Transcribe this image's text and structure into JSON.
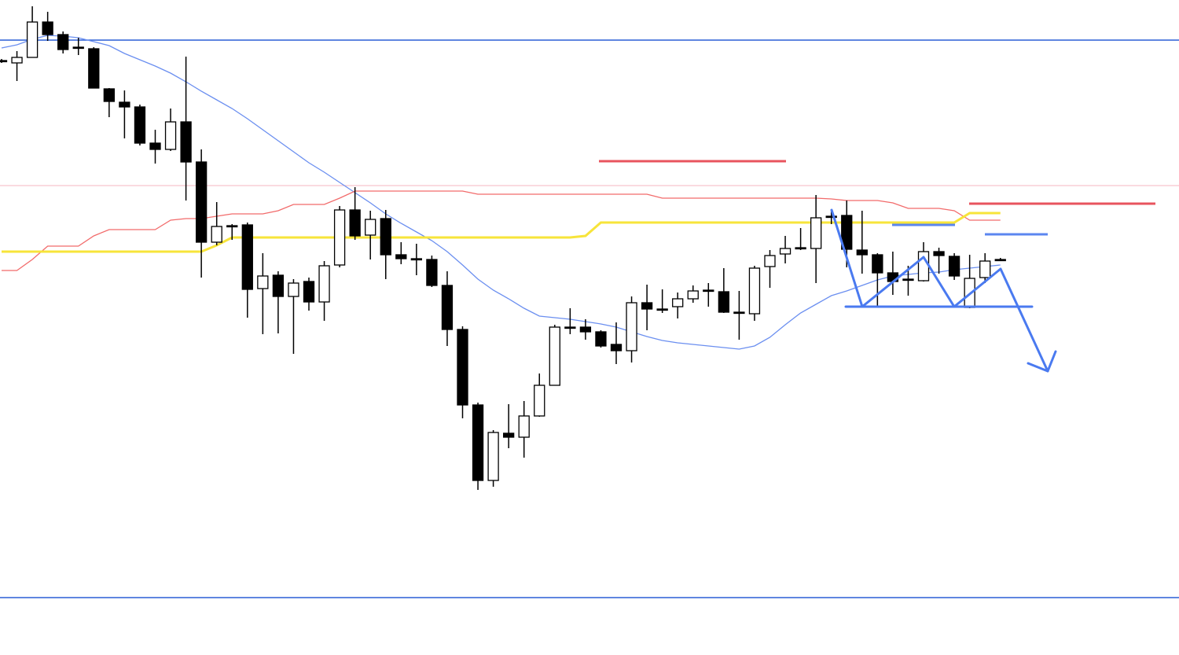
{
  "chart_data": {
    "type": "candlestick",
    "ylim": [
      -833,
      0
    ],
    "up_color": "#ffffff",
    "down_color": "#000000",
    "open": [
      -77,
      -80,
      -73,
      -28,
      -44,
      -60,
      -62,
      -113,
      -130,
      -136,
      -182,
      -190,
      -155,
      -206,
      -308,
      -287,
      -286,
      -367,
      -350,
      -377,
      -358,
      -384,
      -337,
      -267,
      -299,
      -278,
      -324,
      -329,
      -330,
      -363,
      -419,
      -515,
      -611,
      -551,
      -556,
      -529,
      -490,
      -416,
      -416,
      -422,
      -438,
      -446,
      -385,
      -393,
      -390,
      -380,
      -369,
      -371,
      -397,
      -399,
      -339,
      -323,
      -315,
      -316,
      -275,
      -274,
      -318,
      -324,
      -347,
      -355,
      -357,
      -320,
      -326,
      -391,
      -353,
      -330
    ],
    "high": [
      -75,
      -65,
      -8,
      -15,
      -40,
      -48,
      -60,
      -112,
      -115,
      -133,
      -165,
      -138,
      -72,
      -190,
      -257,
      -285,
      -283,
      -322,
      -345,
      -355,
      -353,
      -332,
      -262,
      -238,
      -268,
      -267,
      -308,
      -310,
      -325,
      -345,
      -415,
      -512,
      -547,
      -514,
      -510,
      -475,
      -413,
      -392,
      -406,
      -420,
      -410,
      -377,
      -362,
      -368,
      -372,
      -363,
      -360,
      -341,
      -370,
      -338,
      -318,
      -300,
      -290,
      -248,
      -266,
      -255,
      -268,
      -322,
      -320,
      -338,
      -308,
      -315,
      -322,
      -324,
      -322,
      -328
    ],
    "low": [
      -80,
      -103,
      -73,
      -52,
      -68,
      -70,
      -112,
      -149,
      -176,
      -185,
      -208,
      -192,
      -255,
      -353,
      -312,
      -305,
      -404,
      -425,
      -424,
      -450,
      -395,
      -408,
      -340,
      -305,
      -330,
      -355,
      -336,
      -350,
      -365,
      -440,
      -532,
      -623,
      -619,
      -570,
      -582,
      -530,
      -490,
      -425,
      -432,
      -442,
      -463,
      -461,
      -420,
      -398,
      -405,
      -385,
      -390,
      -398,
      -432,
      -408,
      -366,
      -335,
      -318,
      -360,
      -285,
      -340,
      -348,
      -390,
      -375,
      -376,
      -358,
      -348,
      -356,
      -392,
      -360,
      -331
    ],
    "close": [
      -78,
      -73,
      -28,
      -44,
      -63,
      -61,
      -112,
      -129,
      -136,
      -182,
      -190,
      -155,
      -206,
      -308,
      -288,
      -287,
      -368,
      -351,
      -377,
      -360,
      -384,
      -338,
      -267,
      -300,
      -279,
      -324,
      -329,
      -329,
      -363,
      -419,
      -515,
      -611,
      -550,
      -556,
      -529,
      -490,
      -416,
      -416,
      -422,
      -440,
      -446,
      -385,
      -393,
      -393,
      -380,
      -370,
      -369,
      -397,
      -397,
      -341,
      -325,
      -316,
      -315,
      -277,
      -275,
      -317,
      -324,
      -347,
      -358,
      -355,
      -320,
      -325,
      -351,
      -354,
      -332,
      -330
    ],
    "series": [
      {
        "color": "#6b8ff0",
        "values": [
          -61,
          -57,
          -50,
          -45,
          -46,
          -48,
          -53,
          -58,
          -68,
          -76,
          -84,
          -93,
          -104,
          -116,
          -127,
          -138,
          -151,
          -165,
          -179,
          -193,
          -207,
          -219,
          -232,
          -245,
          -258,
          -272,
          -284,
          -295,
          -306,
          -320,
          -337,
          -355,
          -369,
          -380,
          -392,
          -402,
          -404,
          -406,
          -409,
          -412,
          -416,
          -422,
          -428,
          -433,
          -436,
          -438,
          -440,
          -442,
          -444,
          -440,
          -429,
          -413,
          -398,
          -387,
          -376,
          -370,
          -363,
          -356,
          -351,
          -349,
          -347,
          -346,
          -343,
          -341,
          -339,
          -337
        ]
      },
      {
        "color": "#f26b6b",
        "values": [
          -344,
          -344,
          -330,
          -313,
          -313,
          -313,
          -300,
          -292,
          -292,
          -292,
          -292,
          -280,
          -278,
          -278,
          -275,
          -272,
          -272,
          -272,
          -268,
          -260,
          -260,
          -260,
          -252,
          -243,
          -243,
          -243,
          -243,
          -243,
          -243,
          -243,
          -243,
          -247,
          -247,
          -247,
          -247,
          -247,
          -247,
          -247,
          -247,
          -247,
          -247,
          -247,
          -247,
          -252,
          -252,
          -252,
          -252,
          -252,
          -252,
          -252,
          -252,
          -252,
          -252,
          -252,
          -253,
          -255,
          -255,
          -255,
          -258,
          -265,
          -265,
          -265,
          -268,
          -280,
          -280,
          -280
        ]
      },
      {
        "color": "#f7e43a",
        "values": [
          -320,
          -320,
          -320,
          -320,
          -320,
          -320,
          -320,
          -320,
          -320,
          -320,
          -320,
          -320,
          -320,
          -320,
          -312,
          -302,
          -302,
          -302,
          -302,
          -302,
          -302,
          -302,
          -302,
          -302,
          -302,
          -302,
          -302,
          -302,
          -302,
          -302,
          -302,
          -302,
          -302,
          -302,
          -302,
          -302,
          -302,
          -302,
          -300,
          -283,
          -283,
          -283,
          -283,
          -283,
          -283,
          -283,
          -283,
          -283,
          -283,
          -283,
          -283,
          -283,
          -283,
          -283,
          -283,
          -283,
          -283,
          -283,
          -283,
          -283,
          -283,
          -283,
          -283,
          -271,
          -271,
          -271
        ]
      }
    ],
    "levels": [
      {
        "value": -51,
        "color": "#2a5fd6"
      },
      {
        "value": -760,
        "color": "#2a5fd6"
      },
      {
        "value": -236,
        "color": "#f4b6c2"
      },
      {
        "value": -205,
        "color": "#e8545e"
      },
      {
        "value": -259,
        "color": "#e8545e"
      },
      {
        "value": -286,
        "color": "#5b86f0"
      },
      {
        "value": -298,
        "color": "#5b86f0"
      }
    ]
  }
}
